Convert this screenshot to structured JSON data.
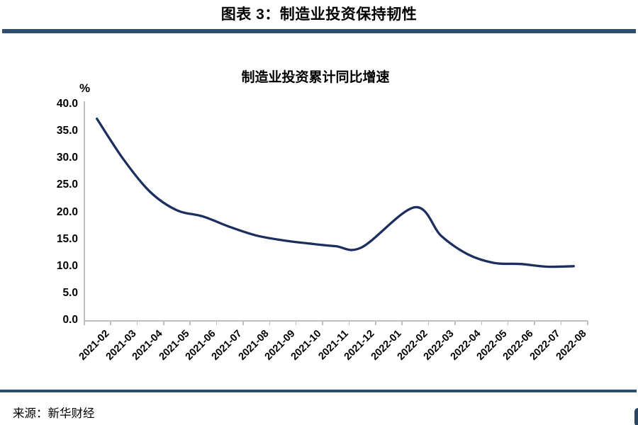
{
  "page": {
    "title": "图表 3：制造业投资保持韧性",
    "source": "来源：新华财经"
  },
  "colors": {
    "rule_bar": "#2e4f6d",
    "line": "#1c2f5e",
    "axis": "#bfbfbf",
    "text": "#000000"
  },
  "chart_data": {
    "type": "line",
    "title": "制造业投资累计同比增速",
    "unit_label": "%",
    "xlabel": "",
    "ylabel": "%",
    "ylim": [
      0,
      40
    ],
    "yticks": [
      "40.0",
      "35.0",
      "30.0",
      "25.0",
      "20.0",
      "15.0",
      "10.0",
      "5.0",
      "0.0"
    ],
    "grid": false,
    "legend": "none",
    "smooth": true,
    "categories": [
      "2021-02",
      "2021-03",
      "2021-04",
      "2021-05",
      "2021-06",
      "2021-07",
      "2021-08",
      "2021-09",
      "2021-10",
      "2021-11",
      "2021-12",
      "2022-01",
      "2022-02",
      "2022-03",
      "2022-04",
      "2022-05",
      "2022-06",
      "2022-07",
      "2022-08"
    ],
    "series": [
      {
        "name": "制造业投资累计同比增速",
        "values": [
          37.3,
          29.8,
          23.8,
          20.4,
          19.2,
          17.3,
          15.7,
          14.8,
          14.2,
          13.7,
          13.5,
          null,
          20.9,
          15.6,
          12.2,
          10.6,
          10.4,
          9.9,
          10.0
        ]
      }
    ]
  }
}
